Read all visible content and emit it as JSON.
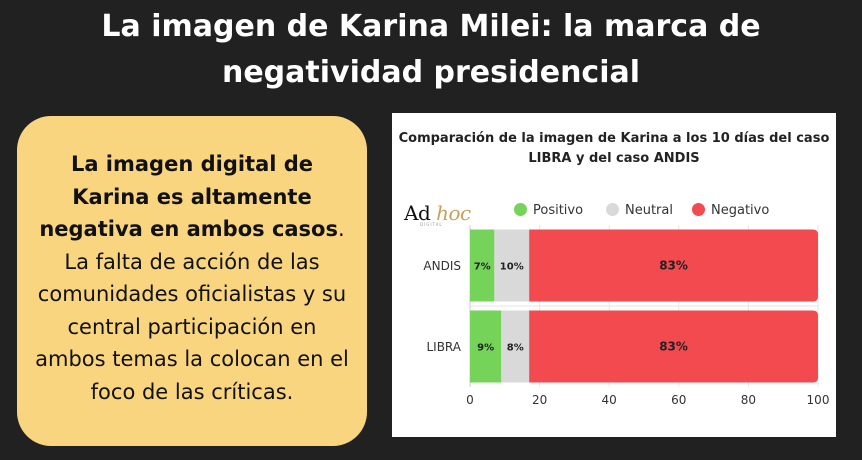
{
  "title": {
    "line1": "La imagen de Karina Milei: la marca de",
    "line2": "negatividad presidencial"
  },
  "card": {
    "bold_text": "La imagen digital de Karina es altamente negativa en ambos casos",
    "rest_text": ". La falta de acción de las comunidades oficialistas y su central participación en ambos temas la colocan en el foco de las críticas."
  },
  "logo": {
    "main": "Ad",
    "accent": "hoc",
    "sub": "DIGITAL"
  },
  "colors": {
    "positivo": "#76d35a",
    "neutral": "#d9d9d9",
    "negativo": "#f24a4f",
    "card_bg": "#f8d57e",
    "page_bg": "#212121"
  },
  "chart_data": {
    "type": "bar",
    "orientation": "horizontal",
    "stacked": true,
    "title": "Comparación de la imagen de Karina a los 10 días del caso LIBRA y del caso ANDIS",
    "categories": [
      "ANDIS",
      "LIBRA"
    ],
    "series": [
      {
        "name": "Positivo",
        "values": [
          7,
          9
        ],
        "labels": [
          "7%",
          "9%"
        ]
      },
      {
        "name": "Neutral",
        "values": [
          10,
          8
        ],
        "labels": [
          "10%",
          "8%"
        ]
      },
      {
        "name": "Negativo",
        "values": [
          83,
          83
        ],
        "labels": [
          "83%",
          "83%"
        ]
      }
    ],
    "xlim": [
      0,
      100
    ],
    "xticks": [
      "0",
      "20",
      "40",
      "60",
      "80",
      "100"
    ],
    "grid": true,
    "legend": "top"
  }
}
